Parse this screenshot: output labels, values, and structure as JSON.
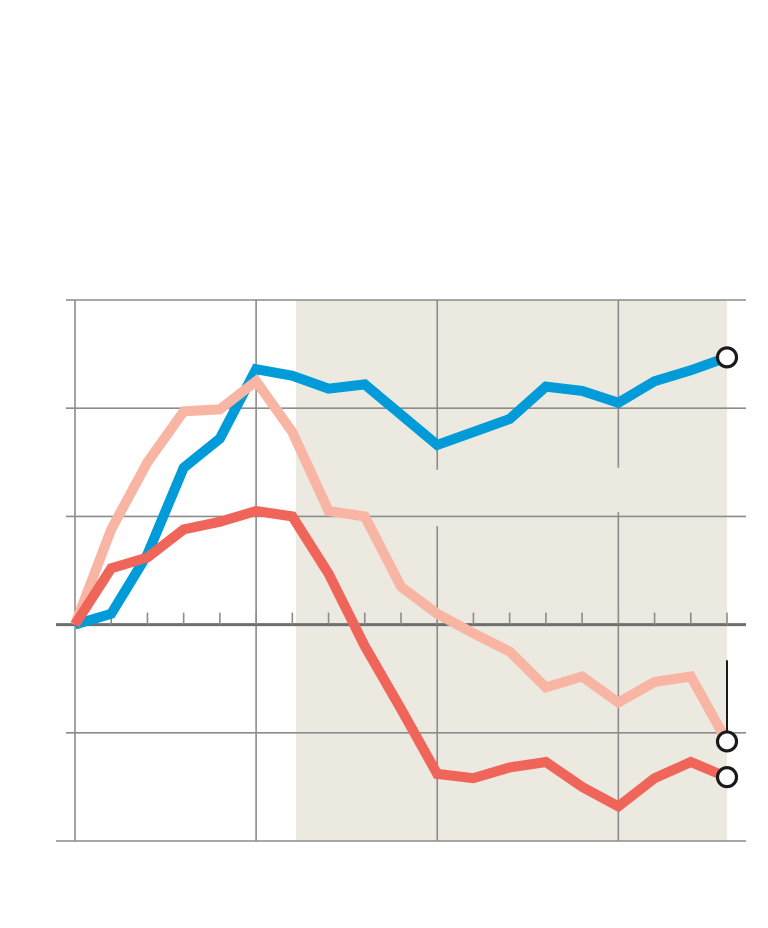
{
  "chart_data": {
    "type": "line",
    "title": "",
    "xlabel": "",
    "ylabel": "",
    "x": [
      0,
      1,
      2,
      3,
      4,
      5,
      6,
      7,
      8,
      9,
      10,
      11,
      12,
      13,
      14,
      15,
      16,
      17,
      18
    ],
    "xlim": [
      0,
      18
    ],
    "ylim": [
      -2,
      3
    ],
    "yticks": [
      -2,
      -1,
      0,
      1,
      2,
      3
    ],
    "minor_xticks": [
      0,
      1,
      2,
      3,
      4,
      5,
      6,
      7,
      8,
      9,
      10,
      11,
      12,
      13,
      14,
      15,
      16,
      17,
      18
    ],
    "major_xgrid": [
      0,
      5,
      10,
      15
    ],
    "shaded_region": [
      6.1,
      18
    ],
    "grid": true,
    "colors": {
      "shade": "#ebe9e0",
      "grid": "#8c8c8c",
      "baseline": "#6e6e6e",
      "marker_fill": "#ffffff",
      "marker_stroke": "#1a1a1a"
    },
    "series": [
      {
        "color": "#009bd8",
        "values": [
          0,
          0.1,
          0.65,
          1.45,
          1.72,
          2.36,
          2.3,
          2.18,
          2.22,
          1.94,
          1.66,
          1.78,
          1.9,
          2.2,
          2.16,
          2.05,
          2.25,
          2.35,
          2.47
        ],
        "end_marker": true
      },
      {
        "color": "#f9b5a4",
        "values": [
          0,
          0.88,
          1.5,
          1.97,
          1.99,
          2.25,
          1.78,
          1.05,
          1.0,
          0.35,
          0.1,
          -0.08,
          -0.25,
          -0.58,
          -0.48,
          -0.72,
          -0.53,
          -0.48,
          -1.08
        ],
        "end_marker": true,
        "end_tick": true
      },
      {
        "color": "#f0655a",
        "values": [
          0,
          0.52,
          0.62,
          0.88,
          0.95,
          1.05,
          1.0,
          0.47,
          -0.2,
          -0.78,
          -1.38,
          -1.42,
          -1.32,
          -1.27,
          -1.5,
          -1.68,
          -1.42,
          -1.27,
          -1.41
        ],
        "end_marker": true
      }
    ]
  }
}
